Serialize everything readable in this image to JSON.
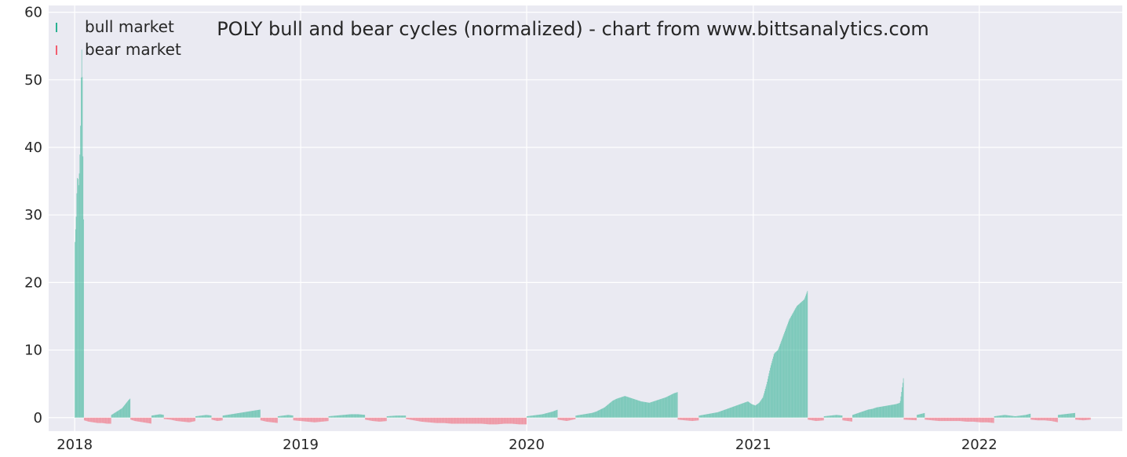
{
  "colors": {
    "plot_bg": "#eaeaf2",
    "grid": "#ffffff",
    "bull": "#2ab191",
    "bear": "#f25e6f"
  },
  "chart_data": {
    "type": "bar",
    "title": "POLY bull and bear cycles (normalized)  - chart from www.bittsanalytics.com",
    "xlabel": "",
    "ylabel": "",
    "x_start": "2018-01-01",
    "x_end": "2022-06-30",
    "xlim": [
      "2017-11-20",
      "2022-08-20"
    ],
    "ylim": [
      -2,
      61
    ],
    "x_ticks": [
      {
        "date": "2018-01-01",
        "label": "2018"
      },
      {
        "date": "2019-01-01",
        "label": "2019"
      },
      {
        "date": "2020-01-01",
        "label": "2020"
      },
      {
        "date": "2021-01-01",
        "label": "2021"
      },
      {
        "date": "2022-01-01",
        "label": "2022"
      }
    ],
    "y_ticks": [
      0,
      10,
      20,
      30,
      40,
      50,
      60
    ],
    "grid": true,
    "legend_position": "top-left",
    "series": [
      {
        "name": "bull market",
        "color": "#2ab191",
        "segments": [
          {
            "start": "2018-01-01",
            "end": "2018-01-16",
            "values": [
              26,
              28,
              30,
              34,
              36,
              35,
              34,
              38,
              40,
              48,
              55,
              53,
              40,
              30,
              20
            ]
          },
          {
            "start": "2018-03-01",
            "end": "2018-04-01",
            "values": [
              0.4,
              0.6,
              0.8,
              1.0,
              1.2,
              1.4,
              1.8,
              2.2,
              2.6,
              2.9
            ]
          },
          {
            "start": "2018-05-05",
            "end": "2018-05-25",
            "values": [
              0.3,
              0.4,
              0.5,
              0.4
            ]
          },
          {
            "start": "2018-07-15",
            "end": "2018-08-10",
            "values": [
              0.2,
              0.3,
              0.4,
              0.3
            ]
          },
          {
            "start": "2018-08-28",
            "end": "2018-10-28",
            "values": [
              0.3,
              0.4,
              0.5,
              0.6,
              0.7,
              0.8,
              0.9,
              1.0,
              1.1,
              1.2
            ]
          },
          {
            "start": "2018-11-25",
            "end": "2018-12-20",
            "values": [
              0.2,
              0.3,
              0.4,
              0.3
            ]
          },
          {
            "start": "2019-02-15",
            "end": "2019-04-15",
            "values": [
              0.2,
              0.3,
              0.4,
              0.5,
              0.5,
              0.4
            ]
          },
          {
            "start": "2019-05-20",
            "end": "2019-06-20",
            "values": [
              0.2,
              0.3,
              0.3
            ]
          },
          {
            "start": "2020-01-01",
            "end": "2020-02-20",
            "values": [
              0.2,
              0.3,
              0.4,
              0.5,
              0.7,
              0.9,
              1.2
            ]
          },
          {
            "start": "2020-03-20",
            "end": "2020-09-01",
            "values": [
              0.3,
              0.4,
              0.5,
              0.6,
              0.7,
              0.9,
              1.2,
              1.5,
              2.0,
              2.5,
              2.8,
              3.0,
              3.2,
              3.0,
              2.8,
              2.6,
              2.4,
              2.3,
              2.2,
              2.4,
              2.6,
              2.8,
              3.0,
              3.3,
              3.6,
              3.8
            ]
          },
          {
            "start": "2020-10-05",
            "end": "2021-03-30",
            "values": [
              0.3,
              0.4,
              0.5,
              0.6,
              0.7,
              0.8,
              1.0,
              1.2,
              1.4,
              1.6,
              1.8,
              2.0,
              2.2,
              2.4,
              2.0,
              1.8,
              2.2,
              3.0,
              5.0,
              7.5,
              9.5,
              10.0,
              11.5,
              13.0,
              14.5,
              15.5,
              16.5,
              17.0,
              17.5,
              19.0
            ]
          },
          {
            "start": "2021-04-25",
            "end": "2021-05-25",
            "values": [
              0.2,
              0.3,
              0.4,
              0.3
            ]
          },
          {
            "start": "2021-06-10",
            "end": "2021-09-01",
            "values": [
              0.4,
              0.6,
              0.8,
              1.0,
              1.2,
              1.3,
              1.5,
              1.6,
              1.7,
              1.8,
              1.9,
              2.0,
              2.2,
              6.5
            ]
          },
          {
            "start": "2021-09-22",
            "end": "2021-10-05",
            "values": [
              0.4,
              0.7
            ]
          },
          {
            "start": "2022-01-25",
            "end": "2022-03-25",
            "values": [
              0.2,
              0.3,
              0.4,
              0.3,
              0.2,
              0.3,
              0.4,
              0.6
            ]
          },
          {
            "start": "2022-05-08",
            "end": "2022-06-05",
            "values": [
              0.4,
              0.5,
              0.6,
              0.7
            ]
          }
        ]
      },
      {
        "name": "bear market",
        "color": "#f25e6f",
        "segments": [
          {
            "start": "2018-01-16",
            "end": "2018-03-01",
            "values": [
              -0.4,
              -0.6,
              -0.7,
              -0.8,
              -0.8,
              -0.9,
              -0.9
            ]
          },
          {
            "start": "2018-04-01",
            "end": "2018-05-05",
            "values": [
              -0.3,
              -0.5,
              -0.6,
              -0.7,
              -0.8,
              -0.9
            ]
          },
          {
            "start": "2018-05-25",
            "end": "2018-07-15",
            "values": [
              -0.2,
              -0.3,
              -0.5,
              -0.6,
              -0.7,
              -0.5
            ]
          },
          {
            "start": "2018-08-10",
            "end": "2018-08-28",
            "values": [
              -0.3,
              -0.5,
              -0.4
            ]
          },
          {
            "start": "2018-10-28",
            "end": "2018-11-25",
            "values": [
              -0.4,
              -0.6,
              -0.7,
              -0.8
            ]
          },
          {
            "start": "2018-12-20",
            "end": "2019-02-15",
            "values": [
              -0.4,
              -0.5,
              -0.6,
              -0.7,
              -0.6,
              -0.5
            ]
          },
          {
            "start": "2019-04-15",
            "end": "2019-05-20",
            "values": [
              -0.3,
              -0.5,
              -0.6,
              -0.5
            ]
          },
          {
            "start": "2019-06-20",
            "end": "2020-01-01",
            "values": [
              -0.2,
              -0.4,
              -0.6,
              -0.7,
              -0.8,
              -0.8,
              -0.9,
              -0.9,
              -0.9,
              -0.9,
              -0.9,
              -1.0,
              -1.0,
              -0.9,
              -0.9,
              -1.0,
              -1.0
            ]
          },
          {
            "start": "2020-02-20",
            "end": "2020-03-20",
            "values": [
              -0.3,
              -0.5,
              -0.2
            ]
          },
          {
            "start": "2020-09-01",
            "end": "2020-10-05",
            "values": [
              -0.3,
              -0.4,
              -0.5,
              -0.4
            ]
          },
          {
            "start": "2021-03-30",
            "end": "2021-04-25",
            "values": [
              -0.3,
              -0.5,
              -0.4
            ]
          },
          {
            "start": "2021-05-25",
            "end": "2021-06-10",
            "values": [
              -0.4,
              -0.6
            ]
          },
          {
            "start": "2021-09-01",
            "end": "2021-09-22",
            "values": [
              -0.3,
              -0.4
            ]
          },
          {
            "start": "2021-10-05",
            "end": "2022-01-25",
            "values": [
              -0.3,
              -0.4,
              -0.5,
              -0.5,
              -0.5,
              -0.5,
              -0.6,
              -0.6,
              -0.7,
              -0.7,
              -0.8
            ]
          },
          {
            "start": "2022-03-25",
            "end": "2022-05-08",
            "values": [
              -0.3,
              -0.4,
              -0.4,
              -0.5,
              -0.7
            ]
          },
          {
            "start": "2022-06-05",
            "end": "2022-06-30",
            "values": [
              -0.3,
              -0.4,
              -0.3
            ]
          }
        ]
      }
    ]
  }
}
